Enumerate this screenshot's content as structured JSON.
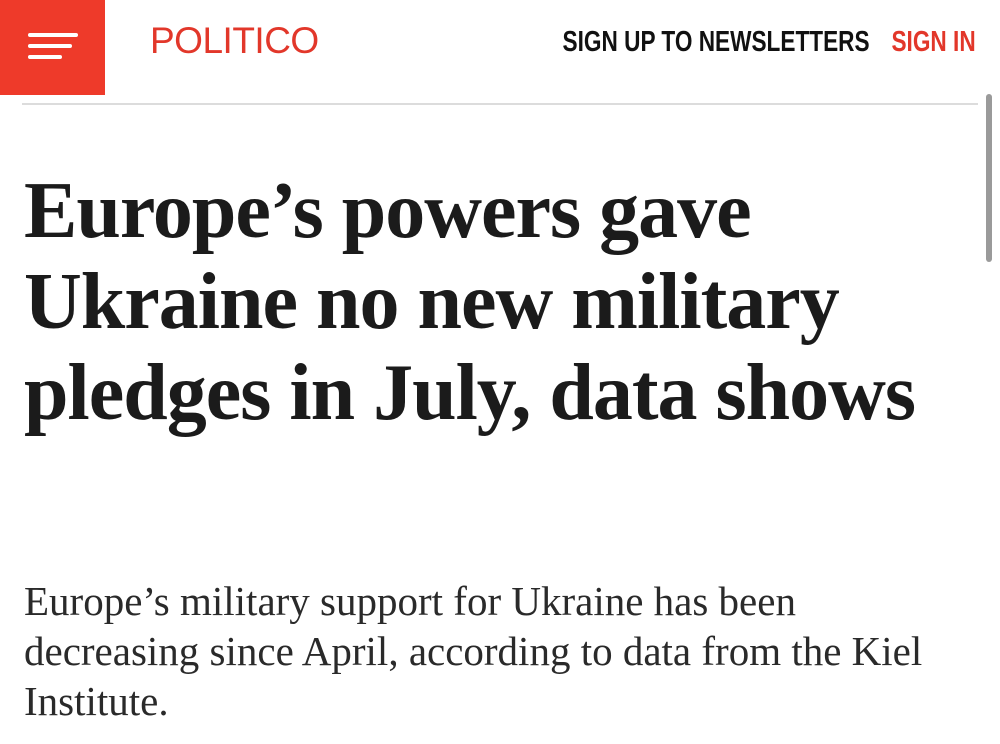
{
  "header": {
    "logo": "POLITICO",
    "newsletter_link": "SIGN UP TO NEWSLETTERS",
    "signin_link": "SIGN IN"
  },
  "article": {
    "headline": "Europe’s powers gave Ukraine no new military pledges in July, data shows",
    "subheadline": "Europe’s military support for Ukraine has been decreasing since April, according to data from the Kiel Institute."
  }
}
